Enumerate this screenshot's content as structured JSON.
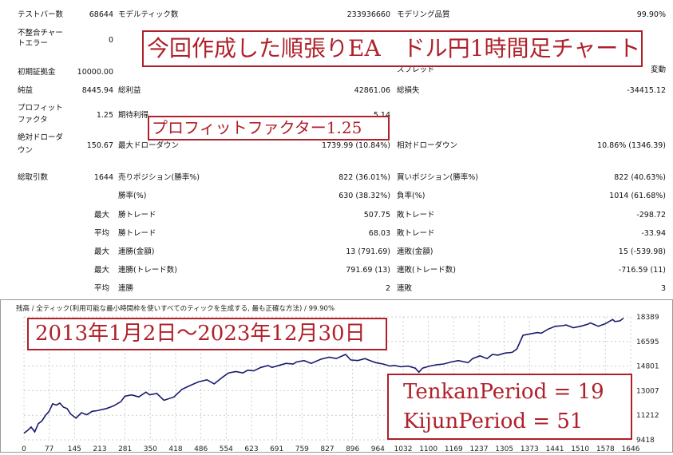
{
  "stats": {
    "test_bars": {
      "label": "テストバー数",
      "value": "68644"
    },
    "model_ticks": {
      "label": "モデルティック数",
      "value": "233936660"
    },
    "model_quality": {
      "label": "モデリング品質",
      "value": "99.90%"
    },
    "mismatch_errors": {
      "label1": "不整合チャー",
      "label2": "トエラー",
      "value": "0"
    },
    "initial_deposit": {
      "label": "初期証拠金",
      "value": "10000.00"
    },
    "spread": {
      "label": "スプレッド",
      "value": "変動"
    },
    "net_profit": {
      "label": "純益",
      "value": "8445.94"
    },
    "gross_profit": {
      "label": "総利益",
      "value": "42861.06"
    },
    "gross_loss": {
      "label": "総損失",
      "value": "-34415.12"
    },
    "profit_factor": {
      "label1": "プロフィット",
      "label2": "ファクタ",
      "value": "1.25"
    },
    "expected_payoff": {
      "label": "期待利得",
      "value": "5.14"
    },
    "abs_drawdown": {
      "label1": "絶対ドローダ",
      "label2": "ウン",
      "value": "150.67"
    },
    "max_drawdown": {
      "label": "最大ドローダウン",
      "value": "1739.99 (10.84%)"
    },
    "rel_drawdown": {
      "label": "相対ドローダウン",
      "value": "10.86% (1346.39)"
    },
    "total_trades": {
      "label": "総取引数",
      "value": "1644"
    },
    "short_positions": {
      "label": "売りポジション(勝率%)",
      "value": "822 (36.01%)"
    },
    "long_positions": {
      "label": "買いポジション(勝率%)",
      "value": "822 (40.63%)"
    },
    "win_rate": {
      "label": "勝率(%)",
      "value": "630 (38.32%)"
    },
    "loss_rate": {
      "label": "負率(%)",
      "value": "1014 (61.68%)"
    },
    "max_win": {
      "prefix": "最大",
      "label": "勝トレード",
      "value": "507.75"
    },
    "max_loss": {
      "label": "敗トレード",
      "value": "-298.72"
    },
    "avg_win": {
      "prefix": "平均",
      "label": "勝トレード",
      "value": "68.03"
    },
    "avg_loss": {
      "label": "敗トレード",
      "value": "-33.94"
    },
    "max_consec_wins_money": {
      "prefix": "最大",
      "label": "連勝(金額)",
      "value": "13 (791.69)"
    },
    "max_consec_losses_money": {
      "label": "連敗(金額)",
      "value": "15 (-539.98)"
    },
    "max_consec_wins_count": {
      "prefix": "最大",
      "label": "連勝(トレード数)",
      "value": "791.69 (13)"
    },
    "max_consec_losses_count": {
      "label": "連敗(トレード数)",
      "value": "-716.59 (11)"
    },
    "avg_consec_wins": {
      "prefix": "平均",
      "label": "連勝",
      "value": "2"
    },
    "avg_consec_losses": {
      "label": "連敗",
      "value": "3"
    }
  },
  "overlays": {
    "title": "今回作成した順張りEA　ドル円1時間足チャート",
    "profit_factor": "プロフィットファクター1.25",
    "period": "2013年1月2日～2023年12月30日",
    "param1": "TenkanPeriod = 19",
    "param2": "KijunPeriod = 51"
  },
  "chart_header": "残高 / 全ティック(利用可能な最小時間枠を使いすべてのティックを生成する, 最も正確な方法) / 99.90%",
  "chart_data": {
    "type": "line",
    "title": "",
    "xlabel": "",
    "ylabel": "",
    "x_ticks": [
      "0",
      "77",
      "145",
      "213",
      "281",
      "350",
      "418",
      "486",
      "554",
      "623",
      "691",
      "759",
      "827",
      "896",
      "964",
      "1032",
      "1100",
      "1169",
      "1237",
      "1305",
      "1373",
      "1441",
      "1510",
      "1578",
      "1646"
    ],
    "y_ticks": [
      "18389",
      "16595",
      "14801",
      "13007",
      "11212",
      "9418"
    ],
    "xlim": [
      0,
      1690
    ],
    "ylim": [
      9418,
      18389
    ],
    "grid": true,
    "line_color": "#1a1a6e",
    "series": [
      {
        "x": [
          0,
          10,
          20,
          30,
          40,
          50,
          60,
          70,
          80,
          90,
          100,
          110,
          120,
          130,
          145,
          160,
          175,
          190,
          205,
          213,
          230,
          250,
          270,
          281,
          300,
          320,
          340,
          350,
          370,
          390,
          418,
          440,
          460,
          486,
          510,
          530,
          554,
          570,
          590,
          610,
          623,
          640,
          660,
          680,
          691,
          710,
          730,
          750,
          759,
          780,
          800,
          827,
          850,
          870,
          896,
          910,
          930,
          950,
          964,
          980,
          1000,
          1020,
          1032,
          1050,
          1070,
          1090,
          1100,
          1110,
          1130,
          1150,
          1169,
          1190,
          1210,
          1237,
          1250,
          1270,
          1290,
          1305,
          1320,
          1340,
          1360,
          1373,
          1390,
          1410,
          1430,
          1441,
          1460,
          1480,
          1500,
          1510,
          1530,
          1550,
          1570,
          1578,
          1600,
          1620,
          1640,
          1646,
          1660,
          1670
        ],
        "y": [
          9900,
          10100,
          10350,
          10000,
          10600,
          10800,
          11200,
          11500,
          12050,
          11950,
          12100,
          11800,
          11700,
          11300,
          11000,
          11400,
          11250,
          11500,
          11550,
          11600,
          11700,
          11900,
          12200,
          12600,
          12700,
          12550,
          12900,
          12700,
          12800,
          12300,
          12550,
          13100,
          13350,
          13650,
          13800,
          13500,
          14000,
          14300,
          14400,
          14300,
          14500,
          14450,
          14700,
          14850,
          14700,
          14850,
          15000,
          14950,
          15100,
          15200,
          15000,
          15300,
          15450,
          15350,
          15650,
          15250,
          15200,
          15350,
          15200,
          15050,
          14950,
          14800,
          14850,
          14750,
          14800,
          14650,
          14350,
          14650,
          14800,
          14900,
          14950,
          15100,
          15200,
          15050,
          15350,
          15550,
          15350,
          15650,
          15600,
          15750,
          15800,
          16050,
          17050,
          17150,
          17250,
          17200,
          17500,
          17700,
          17750,
          17800,
          17600,
          17700,
          17850,
          17950,
          17700,
          17900,
          18200,
          18050,
          18100,
          18300
        ]
      }
    ]
  }
}
